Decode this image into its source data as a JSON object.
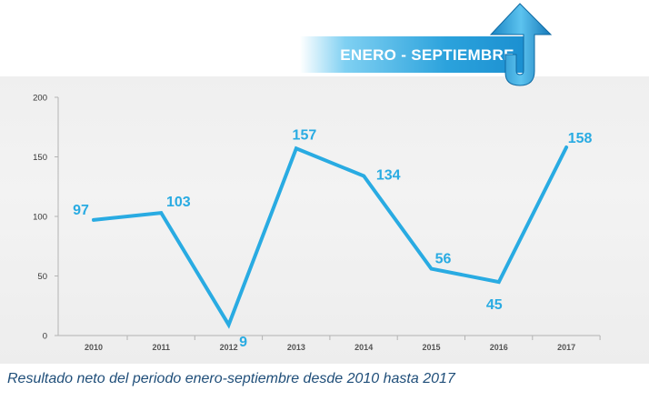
{
  "banner": {
    "label": "ENERO - SEPTIEMBRE"
  },
  "caption": "Resultado neto del periodo enero-septiembre desde 2010 hasta 2017",
  "colors": {
    "line": "#29abe2",
    "accent": "#1b8fd0",
    "caption": "#1f4e79"
  },
  "chart_data": {
    "type": "line",
    "categories": [
      "2010",
      "2011",
      "2012",
      "2013",
      "2014",
      "2015",
      "2016",
      "2017"
    ],
    "values": [
      97,
      103,
      9,
      157,
      134,
      56,
      45,
      158
    ],
    "data_labels": [
      "97",
      "103",
      "9",
      "157",
      "134",
      "56",
      "45",
      "158"
    ],
    "ylim": [
      0,
      200
    ],
    "yticks": [
      "0",
      "50",
      "100",
      "150",
      "200"
    ],
    "grid": false,
    "legend": "none"
  }
}
